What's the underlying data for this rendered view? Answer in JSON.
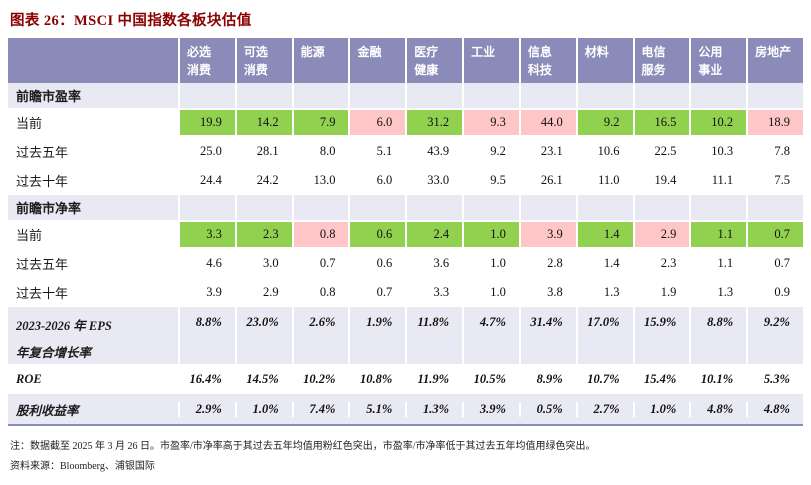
{
  "title": "图表 26：MSCI 中国指数各板块估值",
  "colors": {
    "header_bg": "#8b8bb9",
    "section_bg": "#e9e9f4",
    "below_avg_green": "#92d050",
    "above_avg_pink": "#ffc6c8",
    "title": "#8b0000"
  },
  "table": {
    "corner_label": "",
    "columns": [
      "必选\n消费",
      "可选\n消费",
      "能源",
      "金融",
      "医疗\n健康",
      "工业",
      "信息\n科技",
      "材料",
      "电信\n服务",
      "公用\n事业",
      "房地产"
    ],
    "rows": [
      {
        "kind": "section",
        "label": "前瞻市盈率"
      },
      {
        "kind": "data",
        "label": "当前",
        "values": [
          "19.9",
          "14.2",
          "7.9",
          "6.0",
          "31.2",
          "9.3",
          "44.0",
          "9.2",
          "16.5",
          "10.2",
          "18.9"
        ],
        "fills": [
          "green",
          "green",
          "green",
          "pink",
          "green",
          "pink",
          "pink",
          "green",
          "green",
          "green",
          "pink"
        ]
      },
      {
        "kind": "data",
        "label": "过去五年",
        "values": [
          "25.0",
          "28.1",
          "8.0",
          "5.1",
          "43.9",
          "9.2",
          "23.1",
          "10.6",
          "22.5",
          "10.3",
          "7.8"
        ]
      },
      {
        "kind": "data",
        "label": "过去十年",
        "values": [
          "24.4",
          "24.2",
          "13.0",
          "6.0",
          "33.0",
          "9.5",
          "26.1",
          "11.0",
          "19.4",
          "11.1",
          "7.5"
        ]
      },
      {
        "kind": "section",
        "label": "前瞻市净率"
      },
      {
        "kind": "data",
        "label": "当前",
        "values": [
          "3.3",
          "2.3",
          "0.8",
          "0.6",
          "2.4",
          "1.0",
          "3.9",
          "1.4",
          "2.9",
          "1.1",
          "0.7"
        ],
        "fills": [
          "green",
          "green",
          "pink",
          "green",
          "green",
          "green",
          "pink",
          "green",
          "pink",
          "green",
          "green"
        ]
      },
      {
        "kind": "data",
        "label": "过去五年",
        "values": [
          "4.6",
          "3.0",
          "0.7",
          "0.6",
          "3.6",
          "1.0",
          "2.8",
          "1.4",
          "2.3",
          "1.1",
          "0.7"
        ]
      },
      {
        "kind": "data",
        "label": "过去十年",
        "values": [
          "3.9",
          "2.9",
          "0.8",
          "0.7",
          "3.3",
          "1.0",
          "3.8",
          "1.3",
          "1.9",
          "1.3",
          "0.9"
        ]
      },
      {
        "kind": "metric",
        "shaded": true,
        "tall": true,
        "label": "2023-2026 年 EPS\n年复合增长率",
        "values": [
          "8.8%",
          "23.0%",
          "2.6%",
          "1.9%",
          "11.8%",
          "4.7%",
          "31.4%",
          "17.0%",
          "15.9%",
          "8.8%",
          "9.2%"
        ]
      },
      {
        "kind": "metric",
        "shaded": false,
        "label": "ROE",
        "values": [
          "16.4%",
          "14.5%",
          "10.2%",
          "10.8%",
          "11.9%",
          "10.5%",
          "8.9%",
          "10.7%",
          "15.4%",
          "10.1%",
          "5.3%"
        ]
      },
      {
        "kind": "metric",
        "shaded": true,
        "label": "股利收益率",
        "values": [
          "2.9%",
          "1.0%",
          "7.4%",
          "5.1%",
          "1.3%",
          "3.9%",
          "0.5%",
          "2.7%",
          "1.0%",
          "4.8%",
          "4.8%"
        ]
      }
    ]
  },
  "notes": {
    "note": "注：数据截至 2025 年 3 月 26 日。市盈率/市净率高于其过去五年均值用粉红色突出，市盈率/市净率低于其过去五年均值用绿色突出。",
    "source": "资料来源：Bloomberg、浦银国际"
  }
}
